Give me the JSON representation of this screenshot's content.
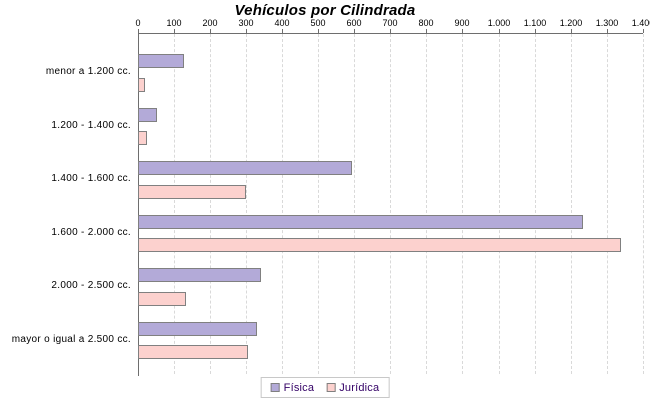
{
  "title": "Vehículos por Cilindrada",
  "colors": {
    "fisica_fill": "#b3aad8",
    "juridica_fill": "#fcd1ce",
    "bar_border": "#808080",
    "axis": "#6e6e6e",
    "grid": "#d9d9d9",
    "tick_text": "#000000",
    "category_text": "#000000",
    "legend_text": "#330066",
    "legend_border": "#c8c8c8",
    "title_text": "#000000"
  },
  "chart_data": {
    "type": "bar",
    "orientation": "horizontal",
    "title": "Vehículos por Cilindrada",
    "categories": [
      "menor a 1.200 cc.",
      "1.200 - 1.400 cc.",
      "1.400 - 1.600 cc.",
      "1.600 - 2.000 cc.",
      "2.000 - 2.500 cc.",
      "mayor o igual a 2.500 cc."
    ],
    "series": [
      {
        "name": "Física",
        "color_key": "fisica_fill",
        "values": [
          128,
          52,
          592,
          1232,
          341,
          330
        ]
      },
      {
        "name": "Jurídica",
        "color_key": "juridica_fill",
        "values": [
          19,
          24,
          299,
          1338,
          134,
          305
        ]
      }
    ],
    "x_axis": {
      "position": "top",
      "min": 0,
      "max": 1400,
      "step": 100,
      "tick_labels": [
        "0",
        "100",
        "200",
        "300",
        "400",
        "500",
        "600",
        "700",
        "800",
        "900",
        "1.000",
        "1.100",
        "1.200",
        "1.300",
        "1.400"
      ]
    },
    "grid": "dashed-vertical",
    "legend_position": "bottom-center"
  },
  "legend": {
    "items": [
      {
        "label": "Física"
      },
      {
        "label": "Jurídica"
      }
    ]
  }
}
